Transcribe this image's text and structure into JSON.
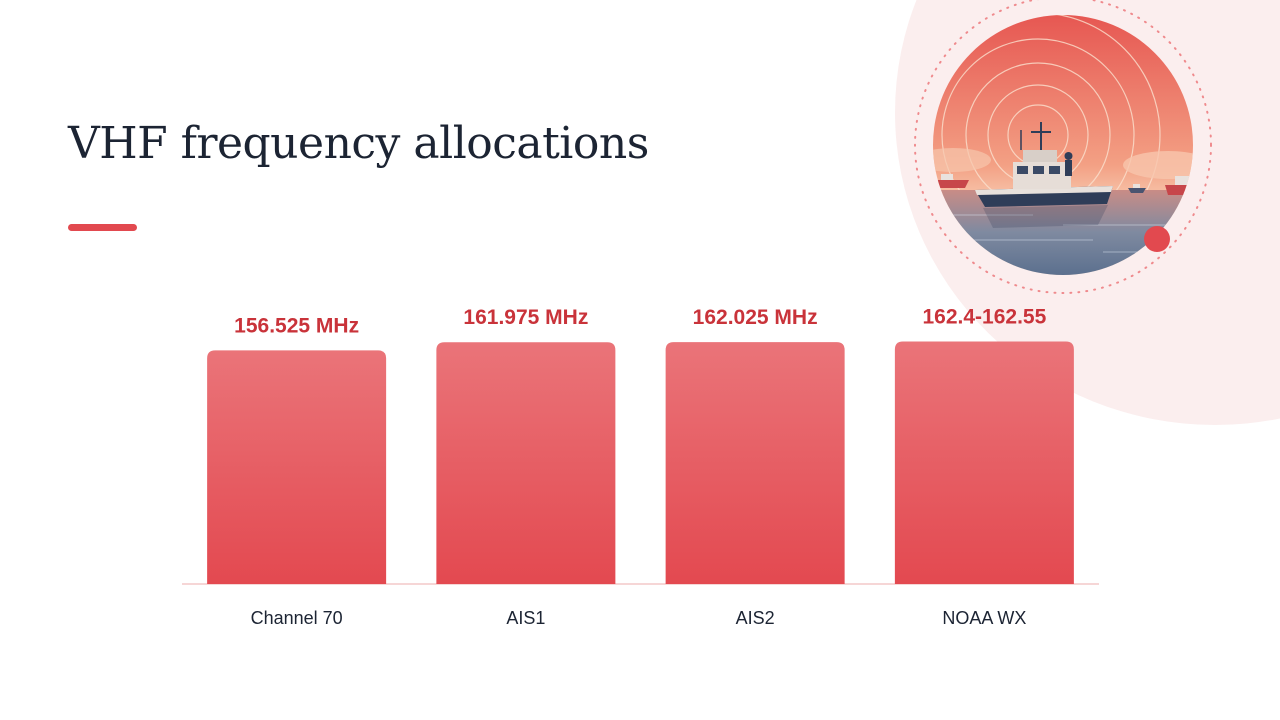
{
  "slide": {
    "title": "VHF frequency allocations"
  },
  "illustration": {
    "icon": "boat-radio-waves-illustration"
  },
  "colors": {
    "accent": "#e2494f",
    "bar_top": "#ea7479",
    "bar_bottom": "#e34950",
    "value_label": "#c9333a",
    "category_label": "#1c2433",
    "title": "#1c2433",
    "baseline": "#f6d6d6"
  },
  "chart_data": {
    "type": "bar",
    "categories": [
      "Channel 70",
      "AIS1",
      "AIS2",
      "NOAA WX"
    ],
    "values": [
      156.525,
      161.975,
      162.025,
      162.475
    ],
    "data_labels": [
      "156.525 MHz",
      "161.975 MHz",
      "162.025 MHz",
      "162.4-162.55"
    ],
    "title": "",
    "xlabel": "",
    "ylabel": "",
    "ylim": [
      0,
      167.5
    ],
    "grid": false,
    "legend": "none"
  }
}
